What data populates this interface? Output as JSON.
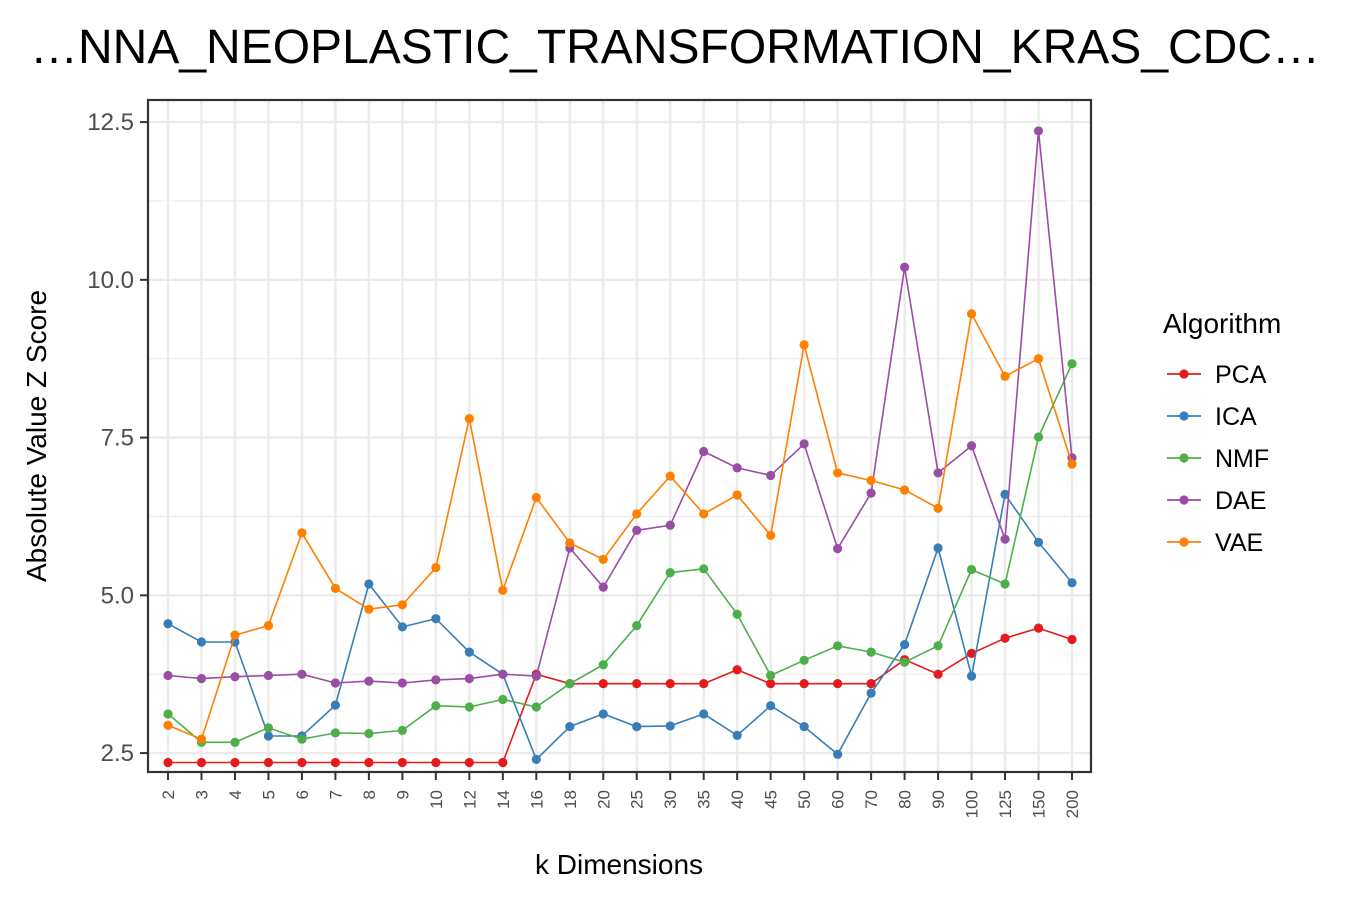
{
  "chart_data": {
    "type": "line",
    "title": "…NNA_NEOPLASTIC_TRANSFORMATION_KRAS_CDC…",
    "xlabel": "k Dimensions",
    "ylabel": "Absolute Value Z Score",
    "ylim": [
      2.2,
      12.85
    ],
    "yticks": [
      "2.5",
      "5.0",
      "7.5",
      "10.0",
      "12.5"
    ],
    "grid": true,
    "legend_title": "Algorithm",
    "legend_position": "right",
    "categories": [
      "2",
      "3",
      "4",
      "5",
      "6",
      "7",
      "8",
      "9",
      "10",
      "12",
      "14",
      "16",
      "18",
      "20",
      "25",
      "30",
      "35",
      "40",
      "45",
      "50",
      "60",
      "70",
      "80",
      "90",
      "100",
      "125",
      "150",
      "200"
    ],
    "series": [
      {
        "name": "PCA",
        "color": "#e41a1c",
        "values": [
          2.35,
          2.35,
          2.35,
          2.35,
          2.35,
          2.35,
          2.35,
          2.35,
          2.35,
          2.35,
          2.35,
          3.75,
          3.6,
          3.6,
          3.6,
          3.6,
          3.6,
          3.82,
          3.6,
          3.6,
          3.6,
          3.6,
          3.98,
          3.75,
          4.08,
          4.32,
          4.48,
          4.3
        ]
      },
      {
        "name": "ICA",
        "color": "#377eb8",
        "values": [
          4.55,
          4.26,
          4.26,
          2.77,
          2.77,
          3.26,
          5.18,
          4.5,
          4.63,
          4.1,
          3.75,
          2.4,
          2.92,
          3.12,
          2.92,
          2.93,
          3.12,
          2.78,
          3.25,
          2.92,
          2.48,
          3.45,
          4.22,
          5.75,
          3.72,
          6.6,
          5.84,
          5.2
        ]
      },
      {
        "name": "NMF",
        "color": "#4daf4a",
        "values": [
          3.12,
          2.67,
          2.67,
          2.9,
          2.72,
          2.82,
          2.81,
          2.86,
          3.25,
          3.23,
          3.35,
          3.23,
          3.6,
          3.9,
          4.52,
          5.36,
          5.42,
          4.7,
          3.73,
          3.97,
          4.2,
          4.1,
          3.94,
          4.2,
          5.41,
          5.18,
          7.51,
          8.67
        ]
      },
      {
        "name": "DAE",
        "color": "#984ea3",
        "values": [
          3.73,
          3.68,
          3.71,
          3.73,
          3.75,
          3.61,
          3.64,
          3.61,
          3.66,
          3.68,
          3.75,
          3.72,
          5.75,
          5.13,
          6.03,
          6.11,
          7.28,
          7.02,
          6.9,
          7.4,
          5.74,
          6.62,
          10.2,
          6.94,
          7.37,
          5.89,
          12.36,
          7.18
        ]
      },
      {
        "name": "VAE",
        "color": "#ff7f00",
        "values": [
          2.94,
          2.72,
          4.37,
          4.52,
          5.99,
          5.11,
          4.78,
          4.85,
          5.44,
          7.8,
          5.08,
          6.55,
          5.83,
          5.57,
          6.29,
          6.89,
          6.29,
          6.59,
          5.95,
          8.97,
          6.94,
          6.82,
          6.67,
          6.38,
          9.46,
          8.47,
          8.75,
          7.08
        ]
      }
    ]
  }
}
